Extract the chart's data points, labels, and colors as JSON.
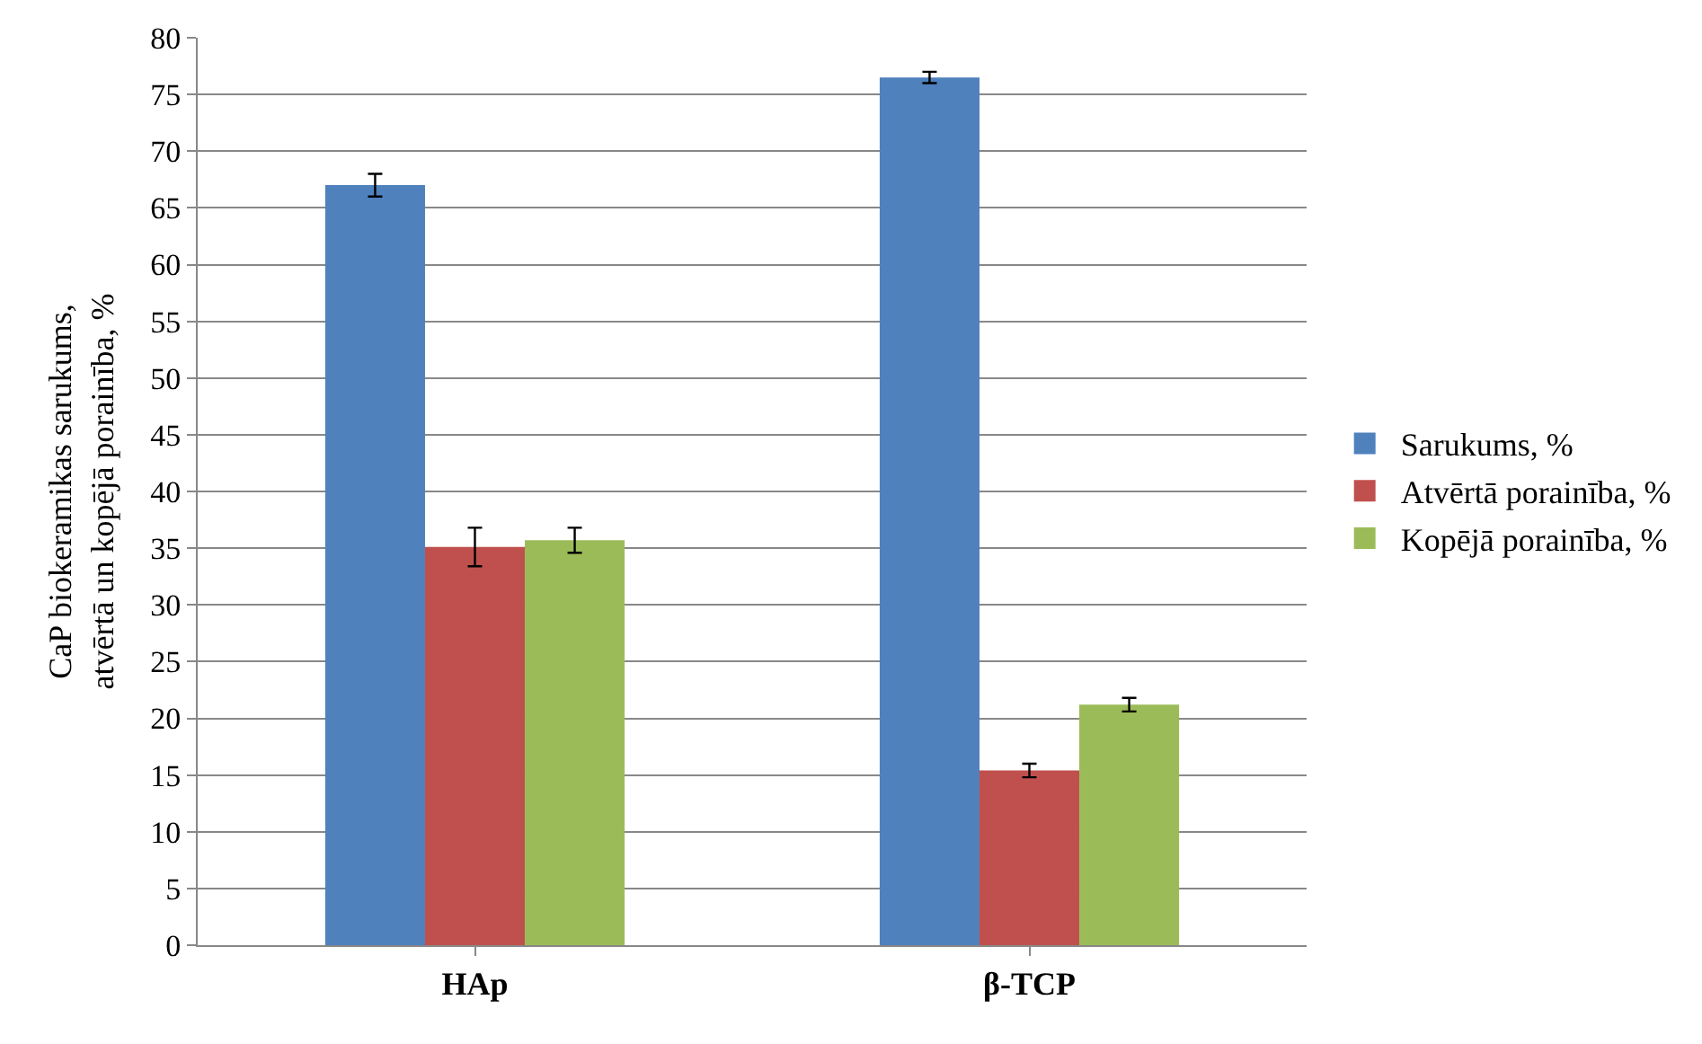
{
  "chart_data": {
    "type": "bar",
    "ylabel": "CaP biokeramikas sarukums,\natvērtā un kopējā porainība, %",
    "categories": [
      "HAp",
      "β-TCP"
    ],
    "series": [
      {
        "name": "Sarukums, %",
        "color": "#4f81bd",
        "values": [
          67.0,
          76.5
        ],
        "errors": [
          1.0,
          0.5
        ]
      },
      {
        "name": "Atvērtā porainība, %",
        "color": "#c0504d",
        "values": [
          35.1,
          15.4
        ],
        "errors": [
          1.7,
          0.6
        ]
      },
      {
        "name": "Kopējā porainība, %",
        "color": "#9bbb59",
        "values": [
          35.7,
          21.2
        ],
        "errors": [
          1.1,
          0.6
        ]
      }
    ],
    "ylim": [
      0,
      80
    ],
    "yticks": [
      0,
      5,
      10,
      15,
      20,
      25,
      30,
      35,
      40,
      45,
      50,
      55,
      60,
      65,
      70,
      75,
      80
    ],
    "grid": "y",
    "legend": "right"
  }
}
